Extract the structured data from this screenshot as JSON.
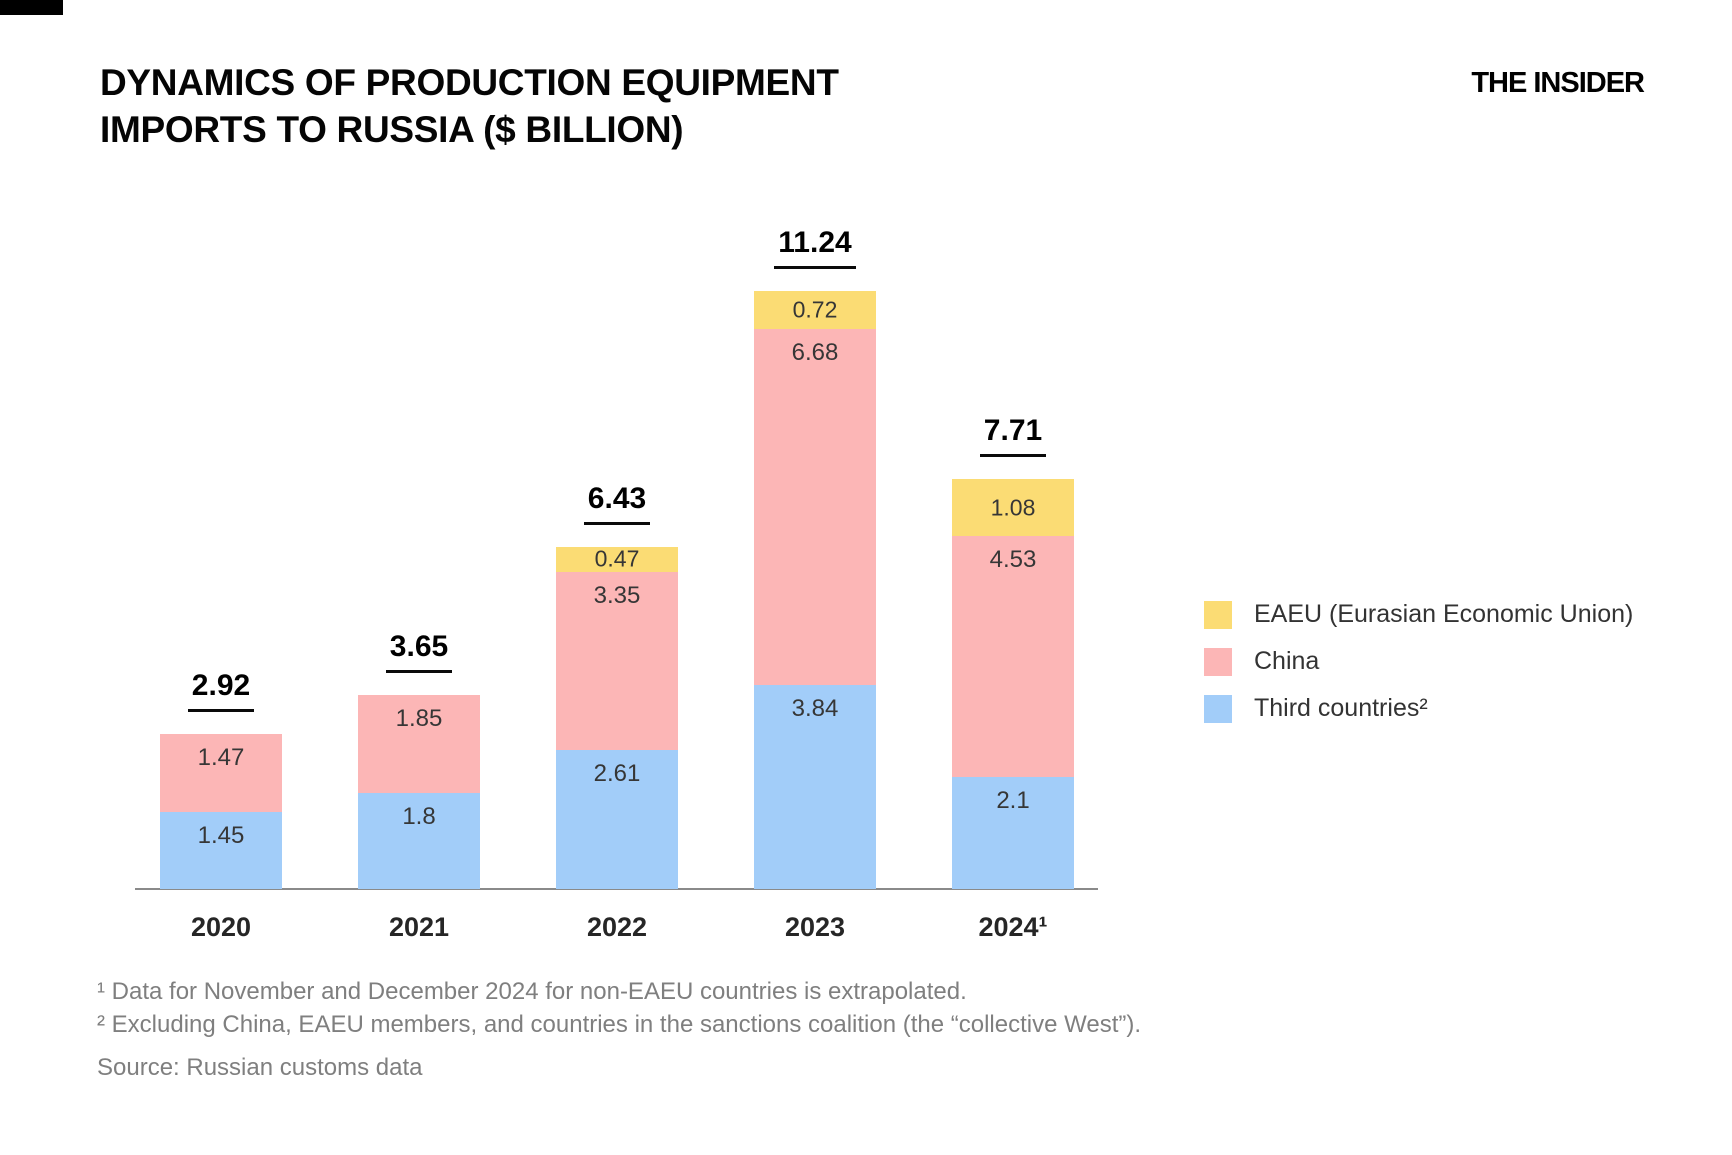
{
  "header": {
    "title_line1": "DYNAMICS OF PRODUCTION EQUIPMENT",
    "title_line2": "IMPORTS TO RUSSIA ($ BILLION)",
    "logo": "THE INSIDER"
  },
  "legend": {
    "position": "right",
    "items": [
      {
        "label": "EAEU (Eurasian Economic Union)",
        "color": "#FBDC74"
      },
      {
        "label": "China",
        "color": "#FCB6B6"
      },
      {
        "label": "Third countries²",
        "color": "#A2CDF9"
      }
    ]
  },
  "chart_data": {
    "type": "bar",
    "stacked": true,
    "title": "Dynamics of production equipment imports to Russia ($ billion)",
    "categories": [
      "2020",
      "2021",
      "2022",
      "2023",
      "2024¹"
    ],
    "series": [
      {
        "name": "Third countries²",
        "color": "#A2CDF9",
        "values": [
          1.45,
          1.8,
          2.61,
          3.84,
          2.1
        ]
      },
      {
        "name": "China",
        "color": "#FCB6B6",
        "values": [
          1.47,
          1.85,
          3.35,
          6.68,
          4.53
        ]
      },
      {
        "name": "EAEU (Eurasian Economic Union)",
        "color": "#FBDC74",
        "values": [
          0,
          0,
          0.47,
          0.72,
          1.08
        ]
      }
    ],
    "totals": [
      2.92,
      3.65,
      6.43,
      11.24,
      7.71
    ],
    "totals_underlined": true,
    "value_labels_shown": true,
    "ylim": [
      0,
      12
    ],
    "grid": false,
    "axis_color": "#8A8A8A",
    "legend_position": "right"
  },
  "footnotes": {
    "line1": "¹ Data for November and December 2024 for non-EAEU countries is extrapolated.",
    "line2": "² Excluding China, EAEU members, and countries in the sanctions coalition (the “collective West”).",
    "source": "Source: Russian customs data"
  }
}
